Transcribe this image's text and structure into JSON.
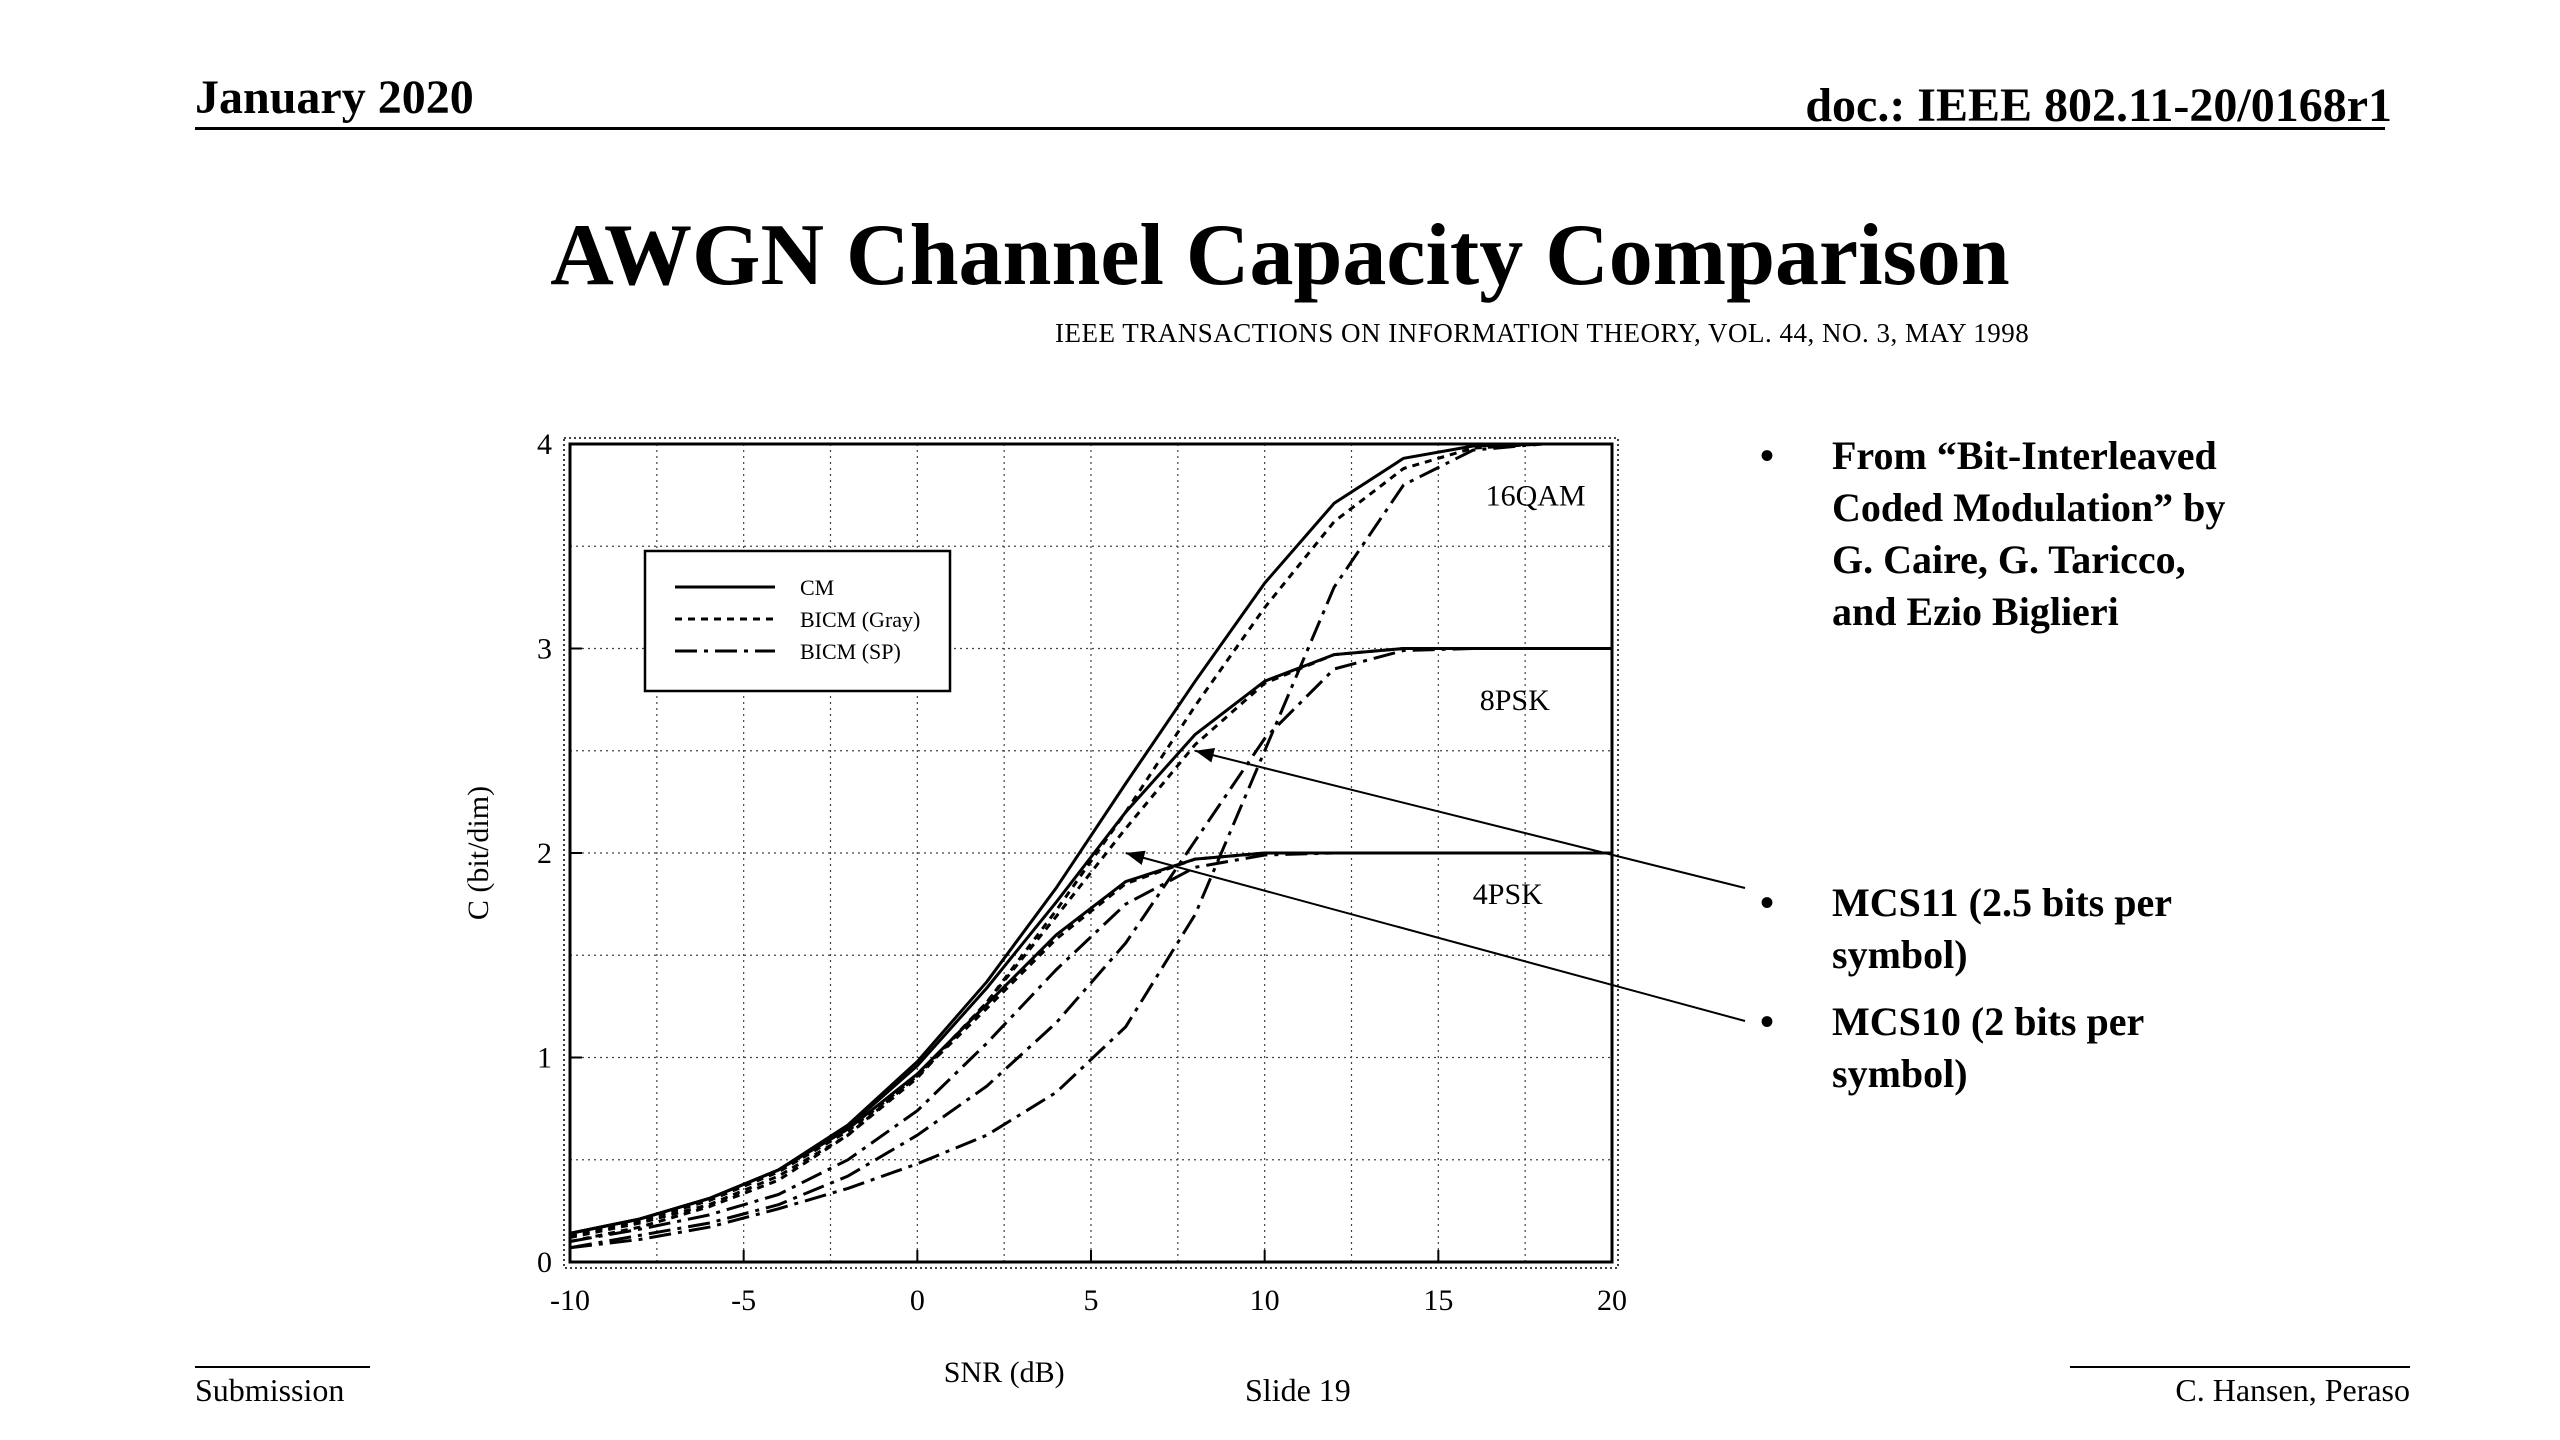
{
  "header": {
    "date": "January 2020",
    "doc": "doc.: IEEE 802.11-20/0168r1"
  },
  "slide": {
    "title": "AWGN Channel Capacity Comparison",
    "citation": "IEEE TRANSACTIONS ON INFORMATION THEORY, VOL. 44, NO. 3, MAY 1998"
  },
  "bullets": [
    "From “Bit-Interleaved Coded Modulation” by G. Caire, G. Taricco, and Ezio Biglieri",
    "MCS11 (2.5 bits per symbol)",
    "MCS10 (2 bits per symbol)"
  ],
  "footer": {
    "left": "Submission",
    "center": "Slide 19",
    "right": "C. Hansen, Peraso"
  },
  "chart_data": {
    "type": "line",
    "xlabel": "SNR (dB)",
    "ylabel": "C (bit/dim)",
    "xlim": [
      -10,
      20
    ],
    "ylim": [
      0,
      4
    ],
    "x_ticks": [
      -10,
      -5,
      0,
      5,
      10,
      15,
      20
    ],
    "y_ticks": [
      0,
      1,
      2,
      3,
      4
    ],
    "grid": true,
    "legend": {
      "position": "top-left",
      "entries": [
        {
          "label": "CM",
          "style": "solid"
        },
        {
          "label": "BICM (Gray)",
          "style": "dashed"
        },
        {
          "label": "BICM (SP)",
          "style": "dashdot"
        }
      ]
    },
    "curve_labels": [
      {
        "text": "16QAM",
        "x": 17.8,
        "y": 3.7
      },
      {
        "text": "8PSK",
        "x": 17.2,
        "y": 2.7
      },
      {
        "text": "4PSK",
        "x": 17.0,
        "y": 1.75
      }
    ],
    "x": [
      -10,
      -8,
      -6,
      -4,
      -2,
      0,
      2,
      4,
      6,
      8,
      10,
      12,
      14,
      16,
      18,
      20
    ],
    "series": [
      {
        "name": "CM",
        "group": "16QAM",
        "style": "solid",
        "values": [
          0.14,
          0.21,
          0.31,
          0.45,
          0.67,
          0.98,
          1.37,
          1.83,
          2.34,
          2.84,
          3.32,
          3.71,
          3.93,
          3.99,
          4.0,
          4.0
        ]
      },
      {
        "name": "BICM (Gray)",
        "group": "16QAM",
        "style": "dashed",
        "values": [
          0.1,
          0.17,
          0.27,
          0.4,
          0.62,
          0.91,
          1.27,
          1.72,
          2.2,
          2.72,
          3.2,
          3.62,
          3.88,
          3.98,
          4.0,
          4.0
        ]
      },
      {
        "name": "BICM (SP)",
        "group": "16QAM",
        "style": "dashdot",
        "values": [
          0.07,
          0.11,
          0.17,
          0.26,
          0.36,
          0.48,
          0.62,
          0.83,
          1.15,
          1.7,
          2.5,
          3.3,
          3.8,
          3.97,
          4.0,
          4.0
        ]
      },
      {
        "name": "CM",
        "group": "8PSK",
        "style": "solid",
        "values": [
          0.14,
          0.21,
          0.31,
          0.45,
          0.66,
          0.96,
          1.34,
          1.76,
          2.2,
          2.58,
          2.84,
          2.97,
          3.0,
          3.0,
          3.0,
          3.0
        ]
      },
      {
        "name": "BICM (Gray)",
        "group": "8PSK",
        "style": "dashed",
        "values": [
          0.12,
          0.19,
          0.28,
          0.42,
          0.62,
          0.9,
          1.27,
          1.69,
          2.12,
          2.53,
          2.83,
          2.97,
          3.0,
          3.0,
          3.0,
          3.0
        ]
      },
      {
        "name": "BICM (SP)",
        "group": "8PSK",
        "style": "dashdot",
        "values": [
          0.07,
          0.13,
          0.19,
          0.28,
          0.42,
          0.62,
          0.86,
          1.17,
          1.56,
          2.06,
          2.56,
          2.9,
          2.99,
          3.0,
          3.0,
          3.0
        ]
      },
      {
        "name": "CM",
        "group": "4PSK",
        "style": "solid",
        "values": [
          0.14,
          0.21,
          0.31,
          0.45,
          0.65,
          0.92,
          1.26,
          1.6,
          1.86,
          1.97,
          2.0,
          2.0,
          2.0,
          2.0,
          2.0,
          2.0
        ]
      },
      {
        "name": "BICM (Gray)",
        "group": "4PSK",
        "style": "dashed",
        "values": [
          0.13,
          0.2,
          0.3,
          0.44,
          0.64,
          0.91,
          1.24,
          1.58,
          1.85,
          1.97,
          2.0,
          2.0,
          2.0,
          2.0,
          2.0,
          2.0
        ]
      },
      {
        "name": "BICM (SP)",
        "group": "4PSK",
        "style": "dashdot",
        "values": [
          0.1,
          0.16,
          0.23,
          0.33,
          0.5,
          0.74,
          1.07,
          1.43,
          1.75,
          1.93,
          1.99,
          2.0,
          2.0,
          2.0,
          2.0,
          2.0
        ]
      }
    ],
    "annotations": [
      {
        "label_ref": "MCS11 (2.5 bits per symbol)",
        "point_x": 8.0,
        "point_y": 2.5
      },
      {
        "label_ref": "MCS10 (2 bits per symbol)",
        "point_x": 6.0,
        "point_y": 2.0
      }
    ]
  }
}
